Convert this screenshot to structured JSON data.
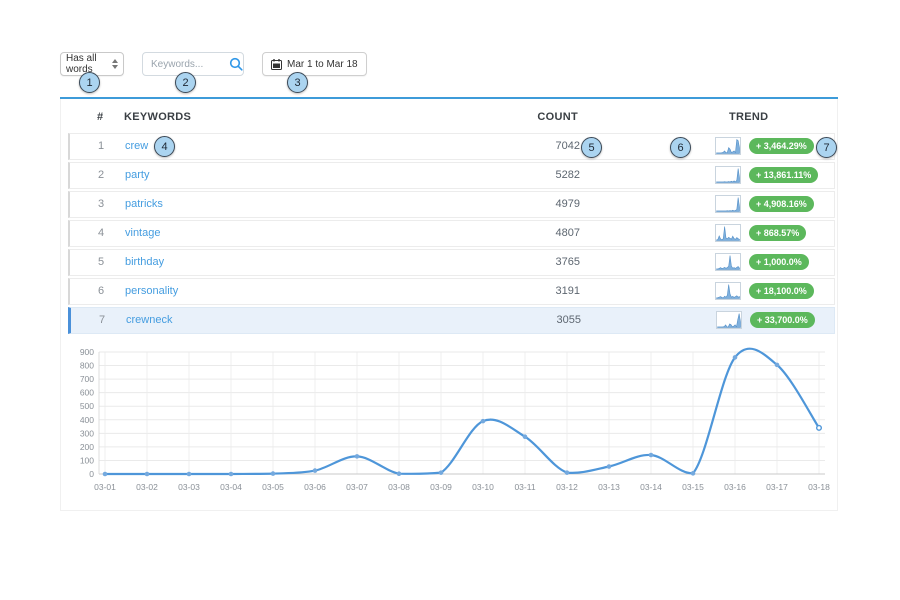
{
  "filters": {
    "match_select": {
      "value": "Has all words"
    },
    "keywords_input": {
      "placeholder": "Keywords..."
    },
    "date_range": {
      "label": "Mar 1 to Mar 18"
    }
  },
  "annotations": {
    "markers": [
      "1",
      "2",
      "3",
      "4",
      "5",
      "6",
      "7"
    ]
  },
  "table": {
    "columns": {
      "rank": "#",
      "keywords": "KEYWORDS",
      "count": "COUNT",
      "trend": "TREND"
    },
    "rows": [
      {
        "rank": "1",
        "keyword": "crew",
        "count": "7042",
        "trend": "+ 3,464.29%",
        "highlighted": false,
        "spark": [
          0,
          0,
          0,
          0,
          0.02,
          0.05,
          0.15,
          0.02,
          0.04,
          0.4,
          0.28,
          0.04,
          0.08,
          0.15,
          0.03,
          1,
          0.92,
          0.38
        ]
      },
      {
        "rank": "2",
        "keyword": "party",
        "count": "5282",
        "trend": "+ 13,861.11%",
        "highlighted": false,
        "spark": [
          0,
          0,
          0,
          0,
          0,
          0,
          0.02,
          0,
          0,
          0.03,
          0,
          0.05,
          0,
          0.08,
          0,
          0.12,
          1,
          0.3
        ]
      },
      {
        "rank": "3",
        "keyword": "patricks",
        "count": "4979",
        "trend": "+ 4,908.16%",
        "highlighted": false,
        "spark": [
          0,
          0,
          0,
          0,
          0,
          0,
          0,
          0,
          0.02,
          0,
          0.03,
          0,
          0.05,
          0,
          0.04,
          0.1,
          1,
          0.28
        ]
      },
      {
        "rank": "4",
        "keyword": "vintage",
        "count": "4807",
        "trend": "+ 868.57%",
        "highlighted": false,
        "spark": [
          0,
          0.03,
          0.3,
          0.08,
          0,
          0.1,
          1,
          0.15,
          0.08,
          0.2,
          0.12,
          0.06,
          0.28,
          0.1,
          0.05,
          0.18,
          0.1,
          0.04
        ]
      },
      {
        "rank": "5",
        "keyword": "birthday",
        "count": "3765",
        "trend": "+ 1,000.0%",
        "highlighted": false,
        "spark": [
          0,
          0,
          0.04,
          0.1,
          0.03,
          0.06,
          0.12,
          0.05,
          0.1,
          0.2,
          1,
          0.22,
          0.06,
          0.1,
          0.04,
          0.12,
          0.18,
          0.06
        ]
      },
      {
        "rank": "6",
        "keyword": "personality",
        "count": "3191",
        "trend": "+ 18,100.0%",
        "highlighted": false,
        "spark": [
          0,
          0.02,
          0.06,
          0.1,
          0.04,
          0,
          0.12,
          0.06,
          0.2,
          1,
          0.3,
          0.06,
          0.12,
          0.04,
          0.1,
          0.16,
          0.06,
          0.1
        ]
      },
      {
        "rank": "7",
        "keyword": "crewneck",
        "count": "3055",
        "trend": "+ 33,700.0%",
        "highlighted": true,
        "spark": [
          0,
          0,
          0,
          0,
          0.01,
          0.03,
          0.15,
          0,
          0.01,
          0.22,
          0.16,
          0.01,
          0.06,
          0.16,
          0.01,
          0.55,
          1,
          0.38
        ]
      }
    ]
  },
  "chart_data": {
    "type": "line",
    "title": "",
    "x": [
      "03-01",
      "03-02",
      "03-03",
      "03-04",
      "03-05",
      "03-06",
      "03-07",
      "03-08",
      "03-09",
      "03-10",
      "03-11",
      "03-12",
      "03-13",
      "03-14",
      "03-15",
      "03-16",
      "03-17",
      "03-18"
    ],
    "values": [
      0,
      0,
      0,
      0,
      3,
      25,
      130,
      2,
      10,
      390,
      275,
      10,
      55,
      140,
      5,
      860,
      805,
      340
    ],
    "xlabel": "",
    "ylabel": "",
    "ylim": [
      0,
      900
    ],
    "ytick_step": 100,
    "grid": true,
    "legend": null,
    "line_color": "#4e96d9"
  },
  "colors": {
    "accent_blue": "#3d9bd9",
    "link_blue": "#459de0",
    "badge_green": "#5cb85c",
    "highlight_row_bg": "#e9f1fa",
    "spark_fill": "#7fb0dd"
  }
}
